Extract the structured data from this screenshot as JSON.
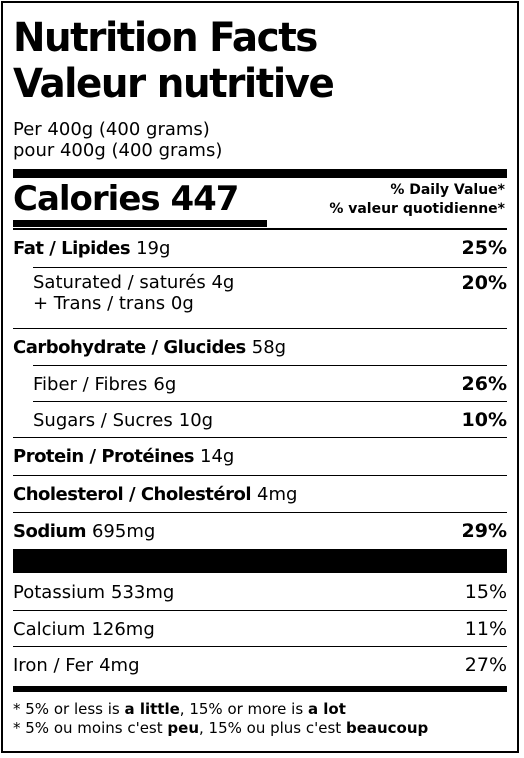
{
  "title": {
    "en": "Nutrition Facts",
    "fr": "Valeur nutritive"
  },
  "serving": {
    "en": "Per 400g (400 grams)",
    "fr": "pour 400g (400 grams)"
  },
  "calories": {
    "label": "Calories",
    "value": "447"
  },
  "daily_value_header": {
    "en": "% Daily Value*",
    "fr": "% valeur quotidienne*"
  },
  "nutrients": [
    {
      "label": "Fat / Lipides",
      "amount": "19g",
      "percent": "25%"
    },
    {
      "label": "Saturated / saturés",
      "amount": "4g",
      "label2": "+ Trans / trans",
      "amount2": "0g",
      "percent": "20%"
    },
    {
      "label": "Carbohydrate / Glucides",
      "amount": "58g",
      "percent": ""
    },
    {
      "label": "Fiber / Fibres",
      "amount": "6g",
      "percent": "26%"
    },
    {
      "label": "Sugars / Sucres",
      "amount": "10g",
      "percent": "10%"
    },
    {
      "label": "Protein / Protéines",
      "amount": "14g",
      "percent": ""
    },
    {
      "label": "Cholesterol / Cholestérol",
      "amount": "4mg",
      "percent": ""
    },
    {
      "label": "Sodium",
      "amount": "695mg",
      "percent": "29%"
    }
  ],
  "minerals": [
    {
      "label": "Potassium",
      "amount": "533mg",
      "percent": "15%"
    },
    {
      "label": "Calcium",
      "amount": "126mg",
      "percent": "11%"
    },
    {
      "label": "Iron / Fer",
      "amount": "4mg",
      "percent": "27%"
    }
  ],
  "footnote": {
    "en": {
      "prefix": "* 5% or less is ",
      "little": "a little",
      "mid": ", 15% or more is ",
      "lot": "a lot"
    },
    "fr": {
      "prefix": "* 5% ou moins c'est ",
      "little": "peu",
      "mid": ", 15% ou plus c'est ",
      "lot": "beaucoup"
    }
  }
}
